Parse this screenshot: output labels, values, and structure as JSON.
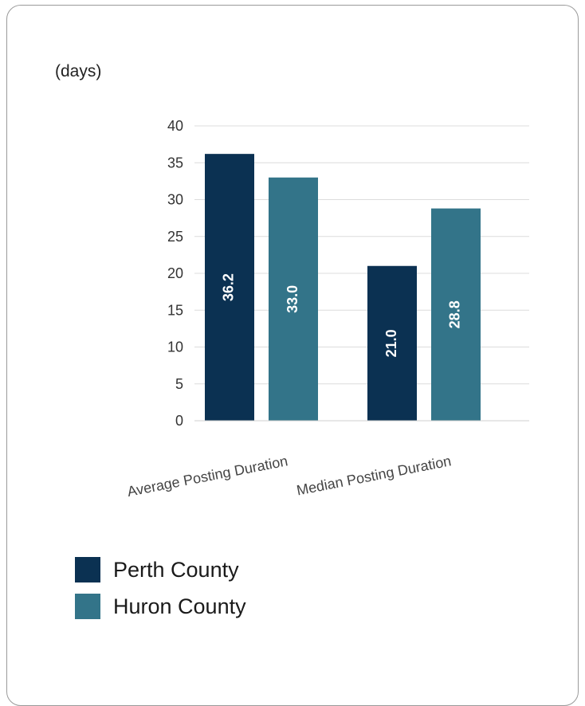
{
  "chart_data": {
    "type": "bar",
    "unit_label": "(days)",
    "categories": [
      "Average Posting Duration",
      "Median Posting Duration"
    ],
    "series": [
      {
        "name": "Perth County",
        "values": [
          36.2,
          21.0
        ],
        "labels": [
          "36.2",
          "21.0"
        ],
        "color": "#0b3152"
      },
      {
        "name": "Huron County",
        "values": [
          33.0,
          28.8
        ],
        "labels": [
          "33.0",
          "28.8"
        ],
        "color": "#337489"
      }
    ],
    "ylim": [
      0,
      40
    ],
    "yticks": [
      "0",
      "5",
      "10",
      "15",
      "20",
      "25",
      "30",
      "35",
      "40"
    ],
    "grid": true,
    "legend_position": "bottom-left"
  }
}
